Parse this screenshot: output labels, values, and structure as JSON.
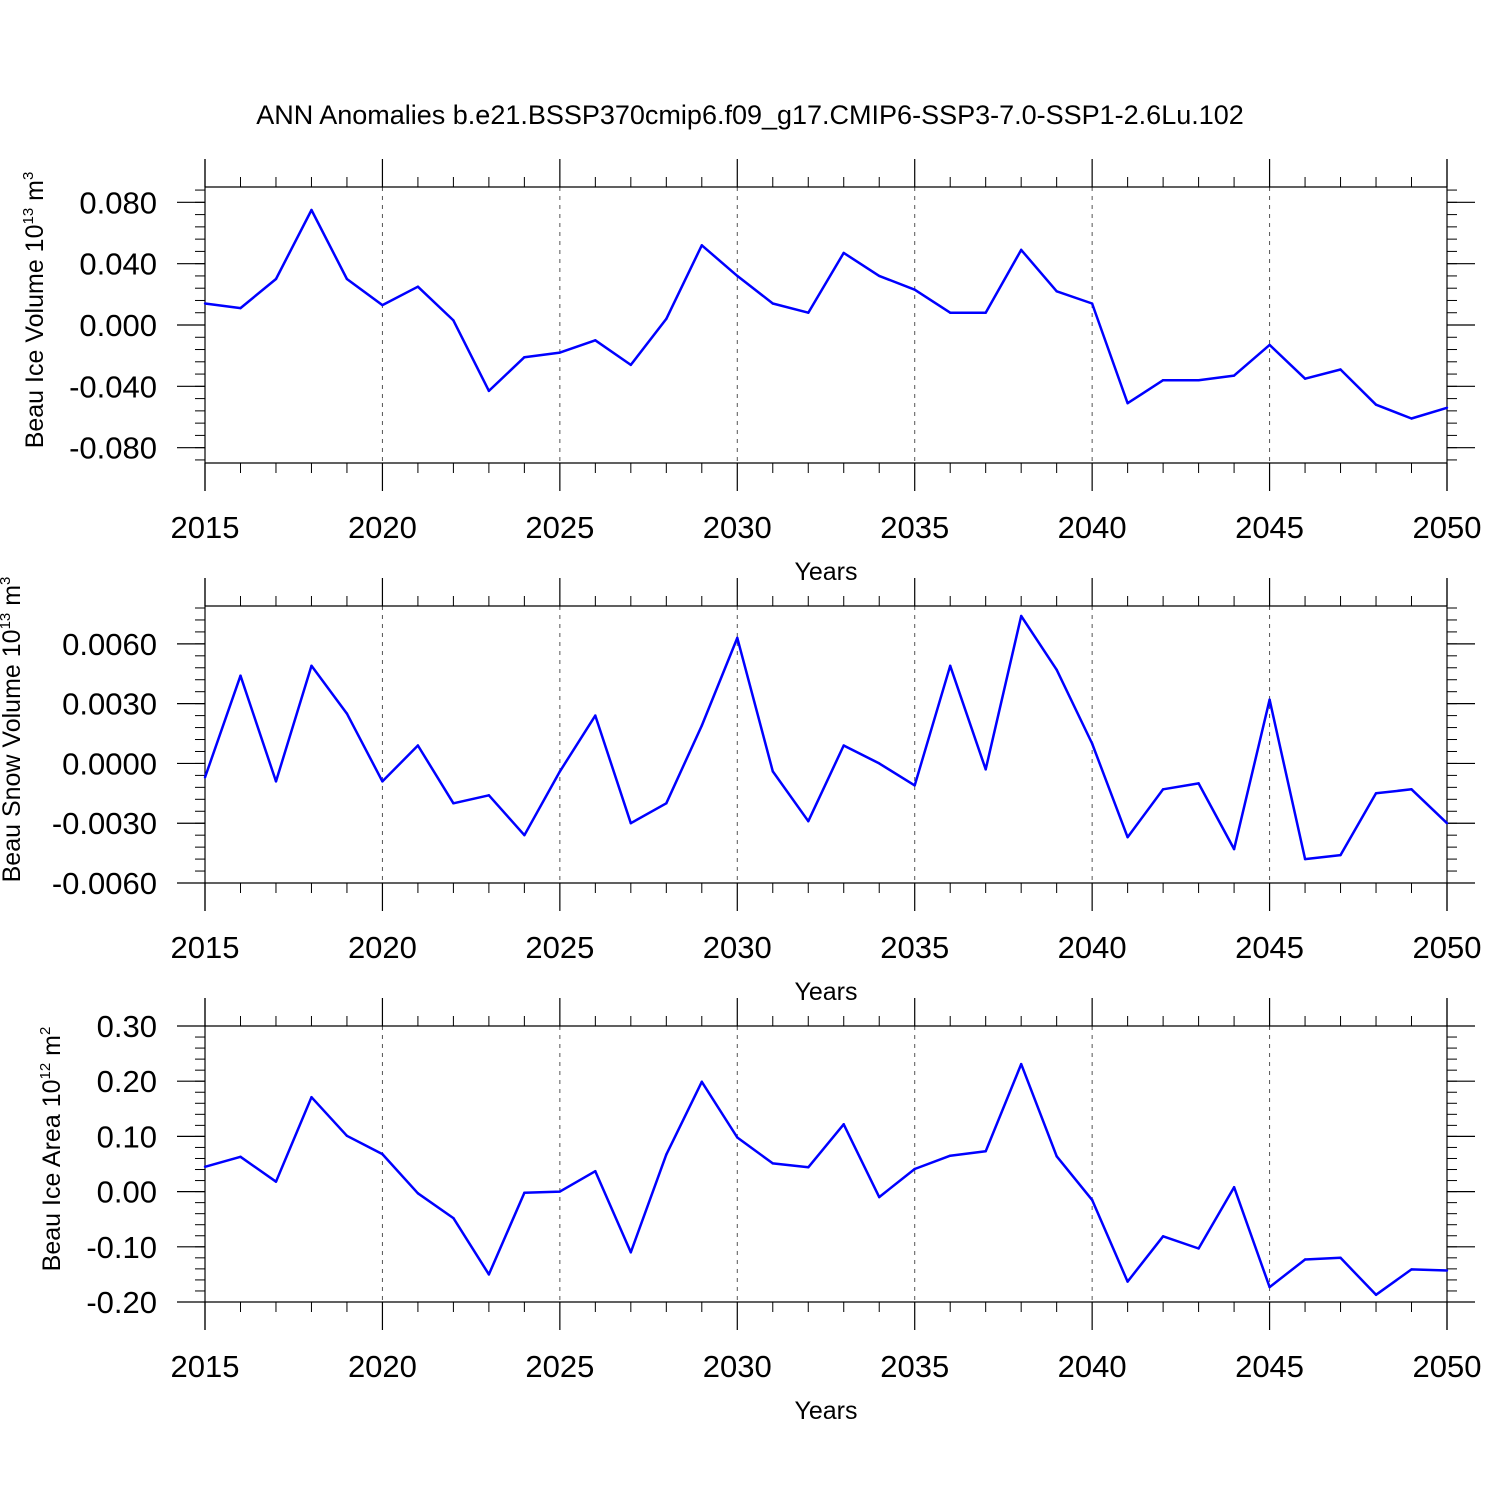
{
  "title": "ANN Anomalies b.e21.BSSP370cmip6.f09_g17.CMIP6-SSP3-7.0-SSP1-2.6Lu.102",
  "colors": {
    "line": "#0000ff",
    "axis": "#000000",
    "grid": "#555555"
  },
  "chart_data": [
    {
      "type": "line",
      "ylabel": {
        "text": "Beau Ice Volume 10",
        "sup": "13",
        "unit": " m",
        "unit_sup": "3"
      },
      "xlabel": "Years",
      "xlim": [
        2015,
        2050
      ],
      "ylim": [
        -0.09,
        0.09
      ],
      "xticks": [
        "2015",
        "2020",
        "2025",
        "2030",
        "2035",
        "2040",
        "2045",
        "2050"
      ],
      "yticks": [
        {
          "value": 0.08,
          "label": "0.080"
        },
        {
          "value": 0.04,
          "label": "0.040"
        },
        {
          "value": 0.0,
          "label": "0.000"
        },
        {
          "value": -0.04,
          "label": "-0.040"
        },
        {
          "value": -0.08,
          "label": "-0.080"
        }
      ],
      "yminor": 0.008,
      "grid": "x-dashed",
      "series": [
        {
          "name": "Beau Ice Volume",
          "x": [
            2015,
            2016,
            2017,
            2018,
            2019,
            2020,
            2021,
            2022,
            2023,
            2024,
            2025,
            2026,
            2027,
            2028,
            2029,
            2030,
            2031,
            2032,
            2033,
            2034,
            2035,
            2036,
            2037,
            2038,
            2039,
            2040,
            2041,
            2042,
            2043,
            2044,
            2045,
            2046,
            2047,
            2048,
            2049,
            2050
          ],
          "values": [
            0.014,
            0.011,
            0.03,
            0.075,
            0.03,
            0.013,
            0.025,
            0.003,
            -0.043,
            -0.021,
            -0.018,
            -0.01,
            -0.026,
            0.004,
            0.052,
            0.032,
            0.014,
            0.008,
            0.047,
            0.032,
            0.023,
            0.008,
            0.008,
            0.049,
            0.022,
            0.014,
            -0.051,
            -0.036,
            -0.036,
            -0.033,
            -0.013,
            -0.035,
            -0.029,
            -0.052,
            -0.061,
            -0.054
          ]
        }
      ]
    },
    {
      "type": "line",
      "ylabel": {
        "text": "Beau Snow Volume 10",
        "sup": "13",
        "unit": " m",
        "unit_sup": "3"
      },
      "xlabel": "Years",
      "xlim": [
        2015,
        2050
      ],
      "ylim": [
        -0.006,
        0.0079
      ],
      "xticks": [
        "2015",
        "2020",
        "2025",
        "2030",
        "2035",
        "2040",
        "2045",
        "2050"
      ],
      "yticks": [
        {
          "value": 0.006,
          "label": "0.0060"
        },
        {
          "value": 0.003,
          "label": "0.0030"
        },
        {
          "value": 0.0,
          "label": "0.0000"
        },
        {
          "value": -0.003,
          "label": "-0.0030"
        },
        {
          "value": -0.006,
          "label": "-0.0060"
        }
      ],
      "yminor": 0.0006,
      "grid": "x-dashed",
      "series": [
        {
          "name": "Beau Snow Volume",
          "x": [
            2015,
            2016,
            2017,
            2018,
            2019,
            2020,
            2021,
            2022,
            2023,
            2024,
            2025,
            2026,
            2027,
            2028,
            2029,
            2030,
            2031,
            2032,
            2033,
            2034,
            2035,
            2036,
            2037,
            2038,
            2039,
            2040,
            2041,
            2042,
            2043,
            2044,
            2045,
            2046,
            2047,
            2048,
            2049,
            2050
          ],
          "values": [
            -0.0007,
            0.0044,
            -0.0009,
            0.0049,
            0.0025,
            -0.0009,
            0.0009,
            -0.002,
            -0.0016,
            -0.0036,
            -0.0004,
            0.0024,
            -0.003,
            -0.002,
            0.0019,
            0.0063,
            -0.0004,
            -0.0029,
            0.0009,
            0.0,
            -0.0011,
            0.0049,
            -0.0003,
            0.0074,
            0.0047,
            0.001,
            -0.0037,
            -0.0013,
            -0.001,
            -0.0043,
            0.0032,
            -0.0048,
            -0.0046,
            -0.0015,
            -0.0013,
            -0.003
          ]
        }
      ]
    },
    {
      "type": "line",
      "ylabel": {
        "text": "Beau Ice Area 10",
        "sup": "12",
        "unit": " m",
        "unit_sup": "2"
      },
      "xlabel": "Years",
      "xlim": [
        2015,
        2050
      ],
      "ylim": [
        -0.2,
        0.3
      ],
      "xticks": [
        "2015",
        "2020",
        "2025",
        "2030",
        "2035",
        "2040",
        "2045",
        "2050"
      ],
      "yticks": [
        {
          "value": 0.3,
          "label": "0.30"
        },
        {
          "value": 0.2,
          "label": "0.20"
        },
        {
          "value": 0.1,
          "label": "0.10"
        },
        {
          "value": 0.0,
          "label": "0.00"
        },
        {
          "value": -0.1,
          "label": "-0.10"
        },
        {
          "value": -0.2,
          "label": "-0.20"
        }
      ],
      "yminor": 0.02,
      "grid": "x-dashed",
      "series": [
        {
          "name": "Beau Ice Area",
          "x": [
            2015,
            2016,
            2017,
            2018,
            2019,
            2020,
            2021,
            2022,
            2023,
            2024,
            2025,
            2026,
            2027,
            2028,
            2029,
            2030,
            2031,
            2032,
            2033,
            2034,
            2035,
            2036,
            2037,
            2038,
            2039,
            2040,
            2041,
            2042,
            2043,
            2044,
            2045,
            2046,
            2047,
            2048,
            2049,
            2050
          ],
          "values": [
            0.045,
            0.063,
            0.018,
            0.171,
            0.101,
            0.068,
            -0.003,
            -0.048,
            -0.15,
            -0.002,
            0.0,
            0.037,
            -0.11,
            0.067,
            0.199,
            0.098,
            0.051,
            0.044,
            0.122,
            -0.01,
            0.041,
            0.065,
            0.073,
            0.231,
            0.064,
            -0.015,
            -0.163,
            -0.081,
            -0.103,
            0.008,
            -0.173,
            -0.123,
            -0.12,
            -0.187,
            -0.141,
            -0.143
          ]
        }
      ]
    }
  ]
}
